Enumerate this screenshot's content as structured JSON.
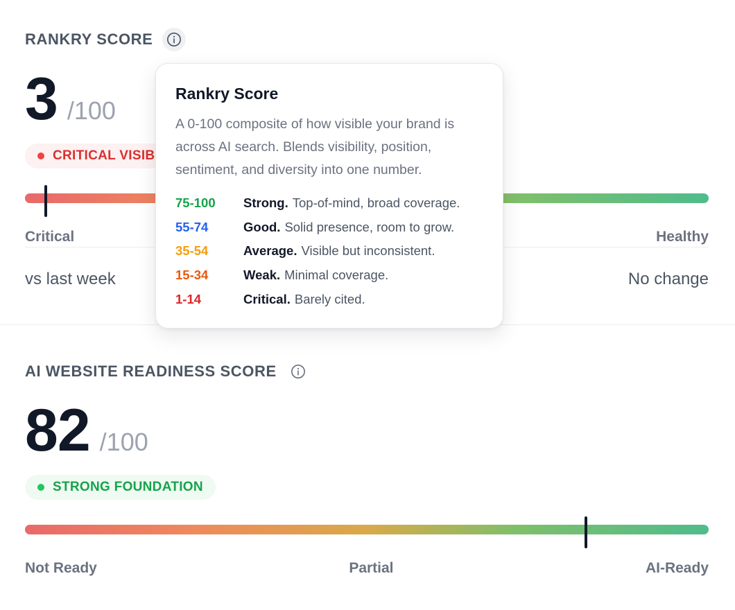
{
  "rankry": {
    "title": "RANKRY SCORE",
    "score": "3",
    "max": "/100",
    "badge": "CRITICAL VISIBILITY",
    "marker_fraction": 0.03,
    "scale_left": "Critical",
    "scale_right": "Healthy",
    "compare_label": "vs last week",
    "compare_value": "No change"
  },
  "tooltip": {
    "title": "Rankry Score",
    "description": "A 0-100 composite of how visible your brand is across AI search. Blends visibility, position, sentiment, and diversity into one number.",
    "ranges": [
      {
        "range": "75-100",
        "name": "Strong.",
        "desc": "Top-of-mind, broad coverage.",
        "color": "#16a34a"
      },
      {
        "range": "55-74",
        "name": "Good.",
        "desc": "Solid presence, room to grow.",
        "color": "#2563eb"
      },
      {
        "range": "35-54",
        "name": "Average.",
        "desc": "Visible but inconsistent.",
        "color": "#f59e0b"
      },
      {
        "range": "15-34",
        "name": "Weak.",
        "desc": "Minimal coverage.",
        "color": "#ea580c"
      },
      {
        "range": "1-14",
        "name": "Critical.",
        "desc": "Barely cited.",
        "color": "#dc2626"
      }
    ]
  },
  "readiness": {
    "title": "AI WEBSITE READINESS SCORE",
    "score": "82",
    "max": "/100",
    "badge": "STRONG FOUNDATION",
    "marker_fraction": 0.82,
    "scale_left": "Not Ready",
    "scale_mid": "Partial",
    "scale_right": "AI-Ready"
  },
  "icons": {
    "info": "info-icon"
  }
}
